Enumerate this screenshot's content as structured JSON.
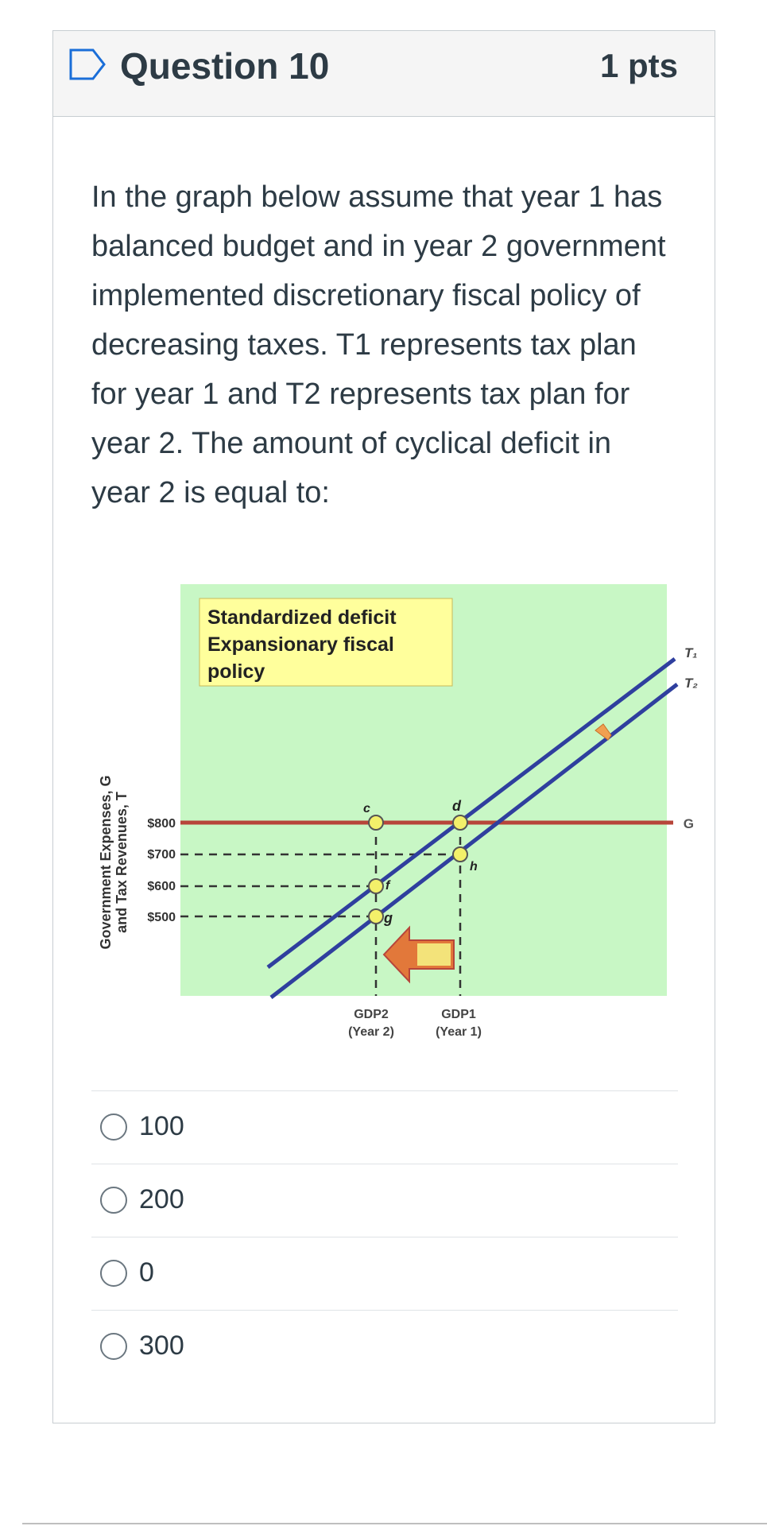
{
  "question": {
    "title": "Question 10",
    "points": "1 pts",
    "text": "In the graph below assume that year 1 has balanced budget and in year 2 government implemented discretionary fiscal policy of decreasing taxes. T1 represents tax plan for year 1 and T2 represents tax plan for year 2. The amount of cyclical deficit in year 2 is equal to:"
  },
  "graph": {
    "box_title_line1": "Standardized deficit",
    "box_title_line2": "Expansionary fiscal",
    "box_title_line3": "policy",
    "ylabel_line1": "Government Expenses, G",
    "ylabel_line2": "and Tax Revenues, T",
    "y_ticks": [
      "$800",
      "$700",
      "$600",
      "$500"
    ],
    "line_labels": {
      "t1": "T₁",
      "t2": "T₂",
      "g": "G"
    },
    "point_labels": {
      "c": "c",
      "d": "d",
      "f": "f",
      "g": "g",
      "h": "h"
    },
    "x_label_gdp2": "GDP2",
    "x_label_year2": "(Year 2)",
    "x_label_gdp1": "GDP1",
    "x_label_year1": "(Year 1)",
    "colors": {
      "background": "#c8f7c5",
      "g_line": "#b7453a",
      "t_lines": "#2f3f9e",
      "point": "#f3f06a",
      "box": "#ffff9c"
    }
  },
  "answers": [
    {
      "label": "100"
    },
    {
      "label": "200"
    },
    {
      "label": "0"
    },
    {
      "label": "300"
    }
  ]
}
